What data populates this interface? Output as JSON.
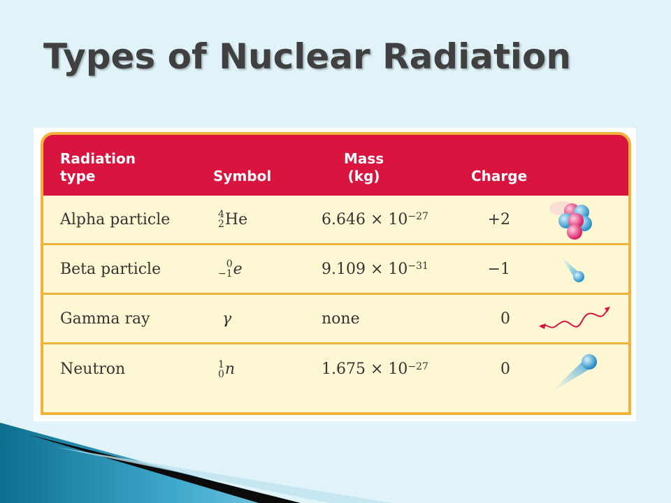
{
  "title": "Types of Nuclear Radiation",
  "table": {
    "headers": {
      "type_line1": "Radiation",
      "type_line2": "type",
      "symbol": "Symbol",
      "mass_line1": "Mass",
      "mass_line2": "(kg)",
      "charge": "Charge"
    },
    "rows": [
      {
        "name": "Alpha particle",
        "symbol_mass_number": "4",
        "symbol_atomic_number": "2",
        "symbol_base": "He",
        "mass_coefficient": "6.646",
        "mass_times": "×",
        "mass_base": "10",
        "mass_exponent": "−27",
        "charge": "+2",
        "icon": "alpha-particle-cluster-icon"
      },
      {
        "name": "Beta particle",
        "symbol_mass_number": "0",
        "symbol_atomic_number": "−1",
        "symbol_base": "e",
        "mass_coefficient": "9.109",
        "mass_times": "×",
        "mass_base": "10",
        "mass_exponent": "−31",
        "charge": "−1",
        "icon": "beta-particle-icon"
      },
      {
        "name": "Gamma ray",
        "symbol": "γ",
        "mass": "none",
        "charge": "0",
        "icon": "gamma-wave-icon"
      },
      {
        "name": "Neutron",
        "symbol_mass_number": "1",
        "symbol_atomic_number": "0",
        "symbol_base": "n",
        "mass_coefficient": "1.675",
        "mass_times": "×",
        "mass_base": "10",
        "mass_exponent": "−27",
        "charge": "0",
        "icon": "neutron-particle-icon"
      }
    ]
  },
  "colors": {
    "background": "#dff3f9",
    "header": "#d8143f",
    "border": "#f2b33a",
    "row_fill": "#fef7d3",
    "title": "#404040"
  }
}
